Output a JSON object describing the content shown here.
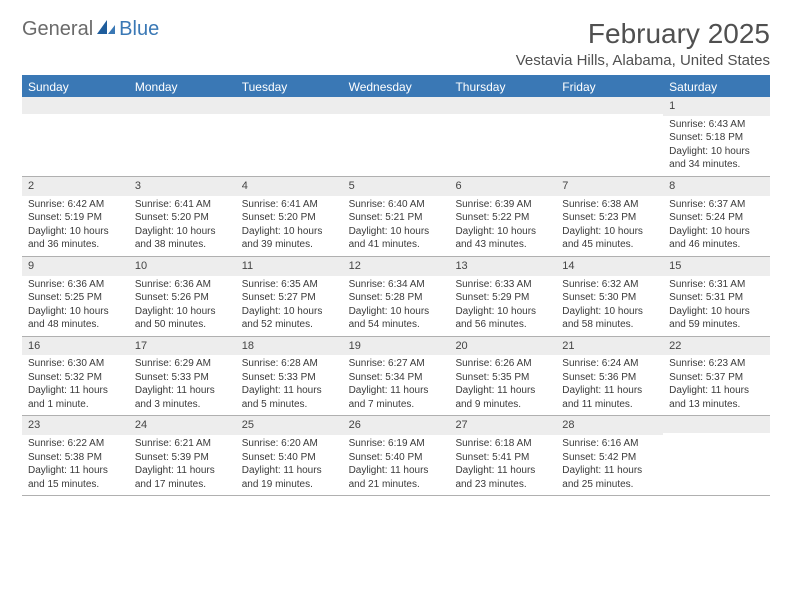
{
  "logo": {
    "text1": "General",
    "text2": "Blue"
  },
  "title": "February 2025",
  "location": "Vestavia Hills, Alabama, United States",
  "colors": {
    "header_bg": "#3a78b5",
    "header_text": "#ffffff",
    "daynum_bg": "#ededed",
    "border": "#b0b0b0",
    "text": "#3a3a3a",
    "title_text": "#505050"
  },
  "day_headers": [
    "Sunday",
    "Monday",
    "Tuesday",
    "Wednesday",
    "Thursday",
    "Friday",
    "Saturday"
  ],
  "weeks": [
    [
      {
        "num": "",
        "lines": []
      },
      {
        "num": "",
        "lines": []
      },
      {
        "num": "",
        "lines": []
      },
      {
        "num": "",
        "lines": []
      },
      {
        "num": "",
        "lines": []
      },
      {
        "num": "",
        "lines": []
      },
      {
        "num": "1",
        "lines": [
          "Sunrise: 6:43 AM",
          "Sunset: 5:18 PM",
          "Daylight: 10 hours and 34 minutes."
        ]
      }
    ],
    [
      {
        "num": "2",
        "lines": [
          "Sunrise: 6:42 AM",
          "Sunset: 5:19 PM",
          "Daylight: 10 hours and 36 minutes."
        ]
      },
      {
        "num": "3",
        "lines": [
          "Sunrise: 6:41 AM",
          "Sunset: 5:20 PM",
          "Daylight: 10 hours and 38 minutes."
        ]
      },
      {
        "num": "4",
        "lines": [
          "Sunrise: 6:41 AM",
          "Sunset: 5:20 PM",
          "Daylight: 10 hours and 39 minutes."
        ]
      },
      {
        "num": "5",
        "lines": [
          "Sunrise: 6:40 AM",
          "Sunset: 5:21 PM",
          "Daylight: 10 hours and 41 minutes."
        ]
      },
      {
        "num": "6",
        "lines": [
          "Sunrise: 6:39 AM",
          "Sunset: 5:22 PM",
          "Daylight: 10 hours and 43 minutes."
        ]
      },
      {
        "num": "7",
        "lines": [
          "Sunrise: 6:38 AM",
          "Sunset: 5:23 PM",
          "Daylight: 10 hours and 45 minutes."
        ]
      },
      {
        "num": "8",
        "lines": [
          "Sunrise: 6:37 AM",
          "Sunset: 5:24 PM",
          "Daylight: 10 hours and 46 minutes."
        ]
      }
    ],
    [
      {
        "num": "9",
        "lines": [
          "Sunrise: 6:36 AM",
          "Sunset: 5:25 PM",
          "Daylight: 10 hours and 48 minutes."
        ]
      },
      {
        "num": "10",
        "lines": [
          "Sunrise: 6:36 AM",
          "Sunset: 5:26 PM",
          "Daylight: 10 hours and 50 minutes."
        ]
      },
      {
        "num": "11",
        "lines": [
          "Sunrise: 6:35 AM",
          "Sunset: 5:27 PM",
          "Daylight: 10 hours and 52 minutes."
        ]
      },
      {
        "num": "12",
        "lines": [
          "Sunrise: 6:34 AM",
          "Sunset: 5:28 PM",
          "Daylight: 10 hours and 54 minutes."
        ]
      },
      {
        "num": "13",
        "lines": [
          "Sunrise: 6:33 AM",
          "Sunset: 5:29 PM",
          "Daylight: 10 hours and 56 minutes."
        ]
      },
      {
        "num": "14",
        "lines": [
          "Sunrise: 6:32 AM",
          "Sunset: 5:30 PM",
          "Daylight: 10 hours and 58 minutes."
        ]
      },
      {
        "num": "15",
        "lines": [
          "Sunrise: 6:31 AM",
          "Sunset: 5:31 PM",
          "Daylight: 10 hours and 59 minutes."
        ]
      }
    ],
    [
      {
        "num": "16",
        "lines": [
          "Sunrise: 6:30 AM",
          "Sunset: 5:32 PM",
          "Daylight: 11 hours and 1 minute."
        ]
      },
      {
        "num": "17",
        "lines": [
          "Sunrise: 6:29 AM",
          "Sunset: 5:33 PM",
          "Daylight: 11 hours and 3 minutes."
        ]
      },
      {
        "num": "18",
        "lines": [
          "Sunrise: 6:28 AM",
          "Sunset: 5:33 PM",
          "Daylight: 11 hours and 5 minutes."
        ]
      },
      {
        "num": "19",
        "lines": [
          "Sunrise: 6:27 AM",
          "Sunset: 5:34 PM",
          "Daylight: 11 hours and 7 minutes."
        ]
      },
      {
        "num": "20",
        "lines": [
          "Sunrise: 6:26 AM",
          "Sunset: 5:35 PM",
          "Daylight: 11 hours and 9 minutes."
        ]
      },
      {
        "num": "21",
        "lines": [
          "Sunrise: 6:24 AM",
          "Sunset: 5:36 PM",
          "Daylight: 11 hours and 11 minutes."
        ]
      },
      {
        "num": "22",
        "lines": [
          "Sunrise: 6:23 AM",
          "Sunset: 5:37 PM",
          "Daylight: 11 hours and 13 minutes."
        ]
      }
    ],
    [
      {
        "num": "23",
        "lines": [
          "Sunrise: 6:22 AM",
          "Sunset: 5:38 PM",
          "Daylight: 11 hours and 15 minutes."
        ]
      },
      {
        "num": "24",
        "lines": [
          "Sunrise: 6:21 AM",
          "Sunset: 5:39 PM",
          "Daylight: 11 hours and 17 minutes."
        ]
      },
      {
        "num": "25",
        "lines": [
          "Sunrise: 6:20 AM",
          "Sunset: 5:40 PM",
          "Daylight: 11 hours and 19 minutes."
        ]
      },
      {
        "num": "26",
        "lines": [
          "Sunrise: 6:19 AM",
          "Sunset: 5:40 PM",
          "Daylight: 11 hours and 21 minutes."
        ]
      },
      {
        "num": "27",
        "lines": [
          "Sunrise: 6:18 AM",
          "Sunset: 5:41 PM",
          "Daylight: 11 hours and 23 minutes."
        ]
      },
      {
        "num": "28",
        "lines": [
          "Sunrise: 6:16 AM",
          "Sunset: 5:42 PM",
          "Daylight: 11 hours and 25 minutes."
        ]
      },
      {
        "num": "",
        "lines": []
      }
    ]
  ]
}
